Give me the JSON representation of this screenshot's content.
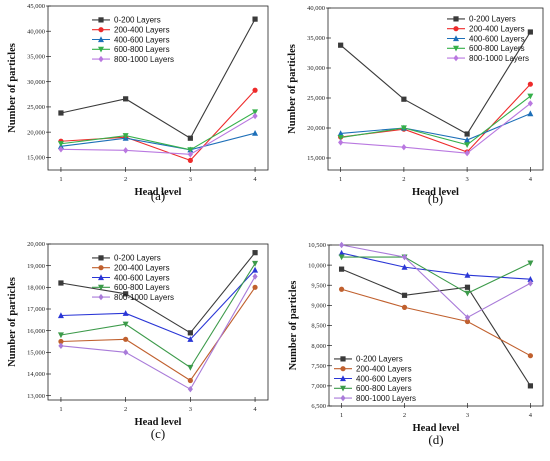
{
  "chart_data": [
    {
      "type": "line",
      "caption": "(a)",
      "xlabel": "Head level",
      "ylabel": "Number of particles",
      "x": [
        1,
        2,
        3,
        4
      ],
      "ylim": [
        12500,
        45000
      ],
      "yticks": [
        15000,
        20000,
        25000,
        30000,
        35000,
        40000,
        45000
      ],
      "ytick_labels": [
        "15,000",
        "20,000",
        "25,000",
        "30,000",
        "35,000",
        "40,000",
        "45,000"
      ],
      "legend_position": "top-left",
      "series": [
        {
          "name": "0-200 Layers",
          "color": "#3a3a3a",
          "marker": "square",
          "values": [
            23800,
            26600,
            18800,
            42400
          ]
        },
        {
          "name": "200-400 Layers",
          "color": "#ee2b2b",
          "marker": "circle",
          "values": [
            18200,
            19000,
            14400,
            28300
          ]
        },
        {
          "name": "400-600 Layers",
          "color": "#1d6fb8",
          "marker": "triangle-up",
          "values": [
            17200,
            18800,
            16500,
            19800
          ]
        },
        {
          "name": "600-800 Layers",
          "color": "#35b04a",
          "marker": "triangle-down",
          "values": [
            17700,
            19300,
            16500,
            24000
          ]
        },
        {
          "name": "800-1000 Layers",
          "color": "#b978e0",
          "marker": "diamond",
          "values": [
            16600,
            16400,
            15600,
            23200
          ]
        }
      ]
    },
    {
      "type": "line",
      "caption": "(b)",
      "xlabel": "Head level",
      "ylabel": "Number of particles",
      "x": [
        1,
        2,
        3,
        4
      ],
      "ylim": [
        13000,
        40000
      ],
      "yticks": [
        15000,
        20000,
        25000,
        30000,
        35000,
        40000
      ],
      "ytick_labels": [
        "15,000",
        "20,000",
        "25,000",
        "30,000",
        "35,000",
        "40,000"
      ],
      "legend_position": "top-right",
      "series": [
        {
          "name": "0-200 Layers",
          "color": "#3a3a3a",
          "marker": "square",
          "values": [
            33800,
            24800,
            19000,
            36000
          ]
        },
        {
          "name": "200-400 Layers",
          "color": "#ee2b2b",
          "marker": "circle",
          "values": [
            18500,
            19800,
            16000,
            27300
          ]
        },
        {
          "name": "400-600 Layers",
          "color": "#1d6fb8",
          "marker": "triangle-up",
          "values": [
            19100,
            20000,
            18000,
            22400
          ]
        },
        {
          "name": "600-800 Layers",
          "color": "#35b04a",
          "marker": "triangle-down",
          "values": [
            18400,
            20000,
            17200,
            25300
          ]
        },
        {
          "name": "800-1000 Layers",
          "color": "#b978e0",
          "marker": "diamond",
          "values": [
            17600,
            16800,
            15800,
            24100
          ]
        }
      ]
    },
    {
      "type": "line",
      "caption": "(c)",
      "xlabel": "Head level",
      "ylabel": "Number of particles",
      "x": [
        1,
        2,
        3,
        4
      ],
      "ylim": [
        12800,
        20000
      ],
      "yticks": [
        13000,
        14000,
        15000,
        16000,
        17000,
        18000,
        19000,
        20000
      ],
      "ytick_labels": [
        "13,000",
        "14,000",
        "15,000",
        "16,000",
        "17,000",
        "18,000",
        "19,000",
        "20,000"
      ],
      "legend_position": "top-left",
      "series": [
        {
          "name": "0-200 Layers",
          "color": "#3a3a3a",
          "marker": "square",
          "values": [
            18200,
            17700,
            15900,
            19600
          ]
        },
        {
          "name": "200-400 Layers",
          "color": "#c0602e",
          "marker": "circle",
          "values": [
            15500,
            15600,
            13700,
            18000
          ]
        },
        {
          "name": "400-600 Layers",
          "color": "#2a36d6",
          "marker": "triangle-up",
          "values": [
            16700,
            16800,
            15600,
            18800
          ]
        },
        {
          "name": "600-800 Layers",
          "color": "#3c9a4a",
          "marker": "triangle-down",
          "values": [
            15800,
            16300,
            14300,
            19100
          ]
        },
        {
          "name": "800-1000 Layers",
          "color": "#a97bd9",
          "marker": "diamond",
          "values": [
            15300,
            15000,
            13300,
            18500
          ]
        }
      ]
    },
    {
      "type": "line",
      "caption": "(d)",
      "xlabel": "Head level",
      "ylabel": "Number of particles",
      "x": [
        1,
        2,
        3,
        4
      ],
      "ylim": [
        6500,
        10500
      ],
      "yticks": [
        6500,
        7000,
        7500,
        8000,
        8500,
        9000,
        9500,
        10000,
        10500
      ],
      "ytick_labels": [
        "6,500",
        "7,000",
        "7,500",
        "8,000",
        "8,500",
        "9,000",
        "9,500",
        "10,000",
        "10,500"
      ],
      "legend_position": "bottom-left",
      "series": [
        {
          "name": "0-200 Layers",
          "color": "#3a3a3a",
          "marker": "square",
          "values": [
            9900,
            9250,
            9450,
            7000
          ]
        },
        {
          "name": "200-400 Layers",
          "color": "#c0602e",
          "marker": "circle",
          "values": [
            9400,
            8950,
            8600,
            7750
          ]
        },
        {
          "name": "400-600 Layers",
          "color": "#2a36d6",
          "marker": "triangle-up",
          "values": [
            10300,
            9950,
            9750,
            9650
          ]
        },
        {
          "name": "600-800 Layers",
          "color": "#3c9a4a",
          "marker": "triangle-down",
          "values": [
            10200,
            10200,
            9300,
            10050
          ]
        },
        {
          "name": "800-1000 Layers",
          "color": "#a97bd9",
          "marker": "diamond",
          "values": [
            10500,
            10200,
            8700,
            9550
          ]
        }
      ]
    }
  ]
}
